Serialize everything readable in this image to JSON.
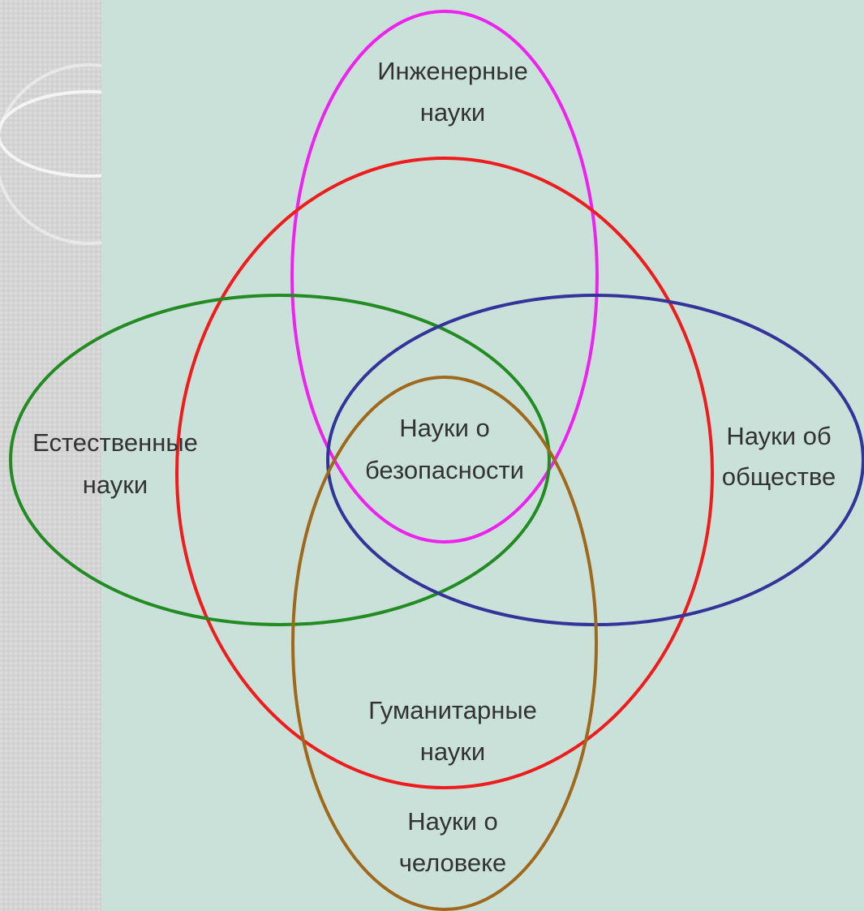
{
  "nodes": [
    {
      "lines": [
        "Инженерные",
        "науки"
      ]
    },
    {
      "lines": [
        "Естественные",
        "науки"
      ]
    },
    {
      "lines": [
        "Науки о",
        "безопасности"
      ]
    },
    {
      "lines": [
        "Науки об",
        "обществе"
      ]
    },
    {
      "lines": [
        "Гуманитарные",
        "науки"
      ]
    },
    {
      "lines": [
        "Науки о",
        "человеке"
      ]
    }
  ]
}
